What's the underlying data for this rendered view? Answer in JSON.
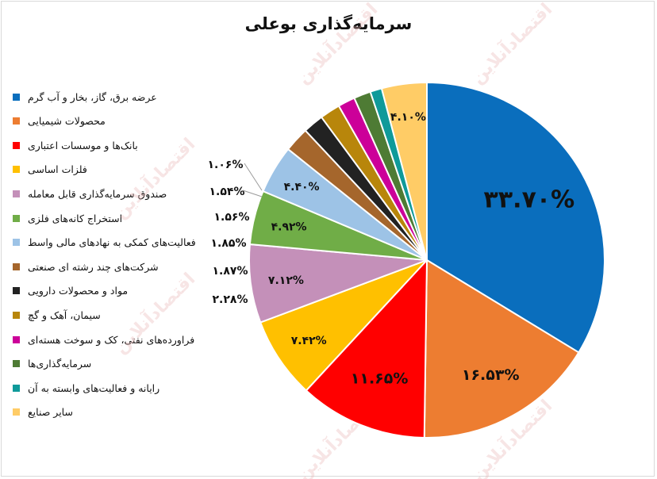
{
  "chart_data": {
    "type": "pie",
    "title": "سرمایه‌گذاری بوعلی",
    "slices": [
      {
        "label": "عرضه برق، گاز، بخار و آب گرم",
        "value": 33.7,
        "value_label": "۳۳.۷۰%",
        "color": "#0a6ebd"
      },
      {
        "label": "محصولات شیمیایی",
        "value": 16.53,
        "value_label": "۱۶.۵۳%",
        "color": "#ed7d31"
      },
      {
        "label": "بانک‌ها و موسسات اعتباری",
        "value": 11.65,
        "value_label": "۱۱.۶۵%",
        "color": "#ff0000"
      },
      {
        "label": "فلزات اساسی",
        "value": 7.42,
        "value_label": "۷.۴۲%",
        "color": "#ffc000"
      },
      {
        "label": "صندوق سرمایه‌گذاری قابل معامله",
        "value": 7.12,
        "value_label": "۷.۱۲%",
        "color": "#c490b9"
      },
      {
        "label": "استخراج کانه‌های فلزی",
        "value": 4.92,
        "value_label": "۴.۹۲%",
        "color": "#70ad47"
      },
      {
        "label": "فعالیت‌های کمکی به نهادهای مالی واسط",
        "value": 4.4,
        "value_label": "۴.۴۰%",
        "color": "#9dc3e6"
      },
      {
        "label": "شرکت‌های چند رشته ای صنعتی",
        "value": 2.28,
        "value_label": "۲.۲۸%",
        "color": "#a5662c"
      },
      {
        "label": "مواد و محصولات دارویی",
        "value": 1.87,
        "value_label": "۱.۸۷%",
        "color": "#222222"
      },
      {
        "label": "سیمان، آهک و گچ",
        "value": 1.85,
        "value_label": "۱.۸۵%",
        "color": "#b8860b"
      },
      {
        "label": "فراورده‌های نفتی، کک و سوخت هسته‌ای",
        "value": 1.56,
        "value_label": "۱.۵۶%",
        "color": "#cc0099"
      },
      {
        "label": "سرمایه‌گذاری‌ها",
        "value": 1.54,
        "value_label": "۱.۵۴%",
        "color": "#4e7b34"
      },
      {
        "label": "رایانه و فعالیت‌های وابسته به آن",
        "value": 1.06,
        "value_label": "۱.۰۶%",
        "color": "#0f9a9a"
      },
      {
        "label": "سایر صنایع",
        "value": 4.1,
        "value_label": "۴.۱۰%",
        "color": "#ffcc66"
      }
    ],
    "start_angle_deg": 0,
    "direction": "clockwise",
    "legend_position": "left",
    "grid": false
  },
  "watermark_text": "اقتصادآنلاین"
}
